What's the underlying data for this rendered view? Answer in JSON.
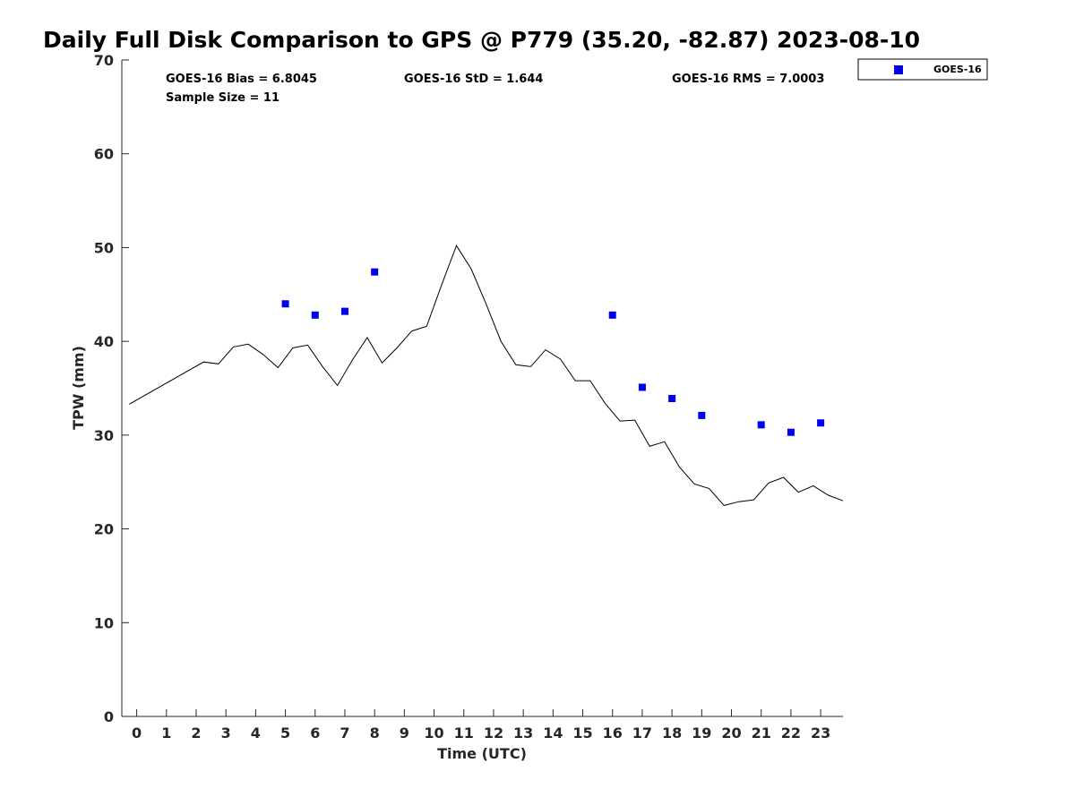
{
  "chart_data": {
    "type": "scatter",
    "title": "Daily Full Disk Comparison to GPS @ P779 (35.20, -82.87) 2023-08-10",
    "xlabel": "Time (UTC)",
    "ylabel": "TPW (mm)",
    "xlim": [
      -0.5,
      23.75
    ],
    "ylim": [
      0,
      70
    ],
    "x_ticks": [
      0,
      1,
      2,
      3,
      4,
      5,
      6,
      7,
      8,
      9,
      10,
      11,
      12,
      13,
      14,
      15,
      16,
      17,
      18,
      19,
      20,
      21,
      22,
      23
    ],
    "x_tick_labels": [
      "0",
      "1",
      "2",
      "3",
      "4",
      "5",
      "6",
      "7",
      "8",
      "9",
      "10",
      "11",
      "12",
      "13",
      "14",
      "15",
      "16",
      "17",
      "18",
      "19",
      "20",
      "21",
      "22",
      "23"
    ],
    "y_ticks": [
      0,
      10,
      20,
      30,
      40,
      50,
      60,
      70
    ],
    "y_tick_labels": [
      "0",
      "10",
      "20",
      "30",
      "40",
      "50",
      "60",
      "70"
    ],
    "grid": false,
    "legend_position": "top-right, outside",
    "stats": {
      "bias": "GOES-16 Bias = 6.8045",
      "std": "GOES-16 StD = 1.644",
      "rms": "GOES-16 RMS = 7.0003",
      "sample": "Sample Size = 11"
    },
    "series": [
      {
        "name": "GOES-16",
        "kind": "scatter",
        "marker": "square",
        "color": "#0000ee",
        "x": [
          5,
          6,
          7,
          8,
          16,
          17,
          18,
          19,
          21,
          22,
          23
        ],
        "y": [
          44.0,
          42.8,
          43.2,
          47.4,
          42.8,
          35.1,
          33.9,
          32.1,
          31.1,
          30.3,
          31.3
        ]
      },
      {
        "kind": "line",
        "color": "#000000",
        "x": [
          -0.25,
          2.25,
          2.75,
          3.25,
          3.75,
          4.25,
          4.75,
          5.25,
          5.75,
          6.25,
          6.75,
          7.25,
          7.75,
          8.25,
          8.75,
          9.25,
          9.75,
          10.25,
          10.75,
          11.25,
          11.75,
          12.25,
          12.75,
          13.25,
          13.75,
          14.25,
          14.75,
          15.25,
          15.75,
          16.25,
          16.75,
          17.25,
          17.75,
          18.25,
          18.75,
          19.25,
          19.75,
          20.25,
          20.75,
          21.25,
          21.75,
          22.25,
          22.75,
          23.25,
          23.75
        ],
        "y": [
          33.3,
          37.8,
          37.6,
          39.4,
          39.7,
          38.6,
          37.2,
          39.3,
          39.6,
          37.3,
          35.3,
          38.0,
          40.4,
          37.7,
          39.3,
          41.1,
          41.6,
          46.0,
          50.2,
          47.7,
          44.0,
          40.0,
          37.5,
          37.3,
          39.1,
          38.1,
          35.8,
          35.8,
          33.4,
          31.5,
          31.6,
          28.8,
          29.3,
          26.6,
          24.8,
          24.3,
          22.5,
          22.9,
          23.1,
          24.9,
          25.5,
          23.9,
          24.6,
          23.6,
          23.0
        ]
      }
    ]
  }
}
